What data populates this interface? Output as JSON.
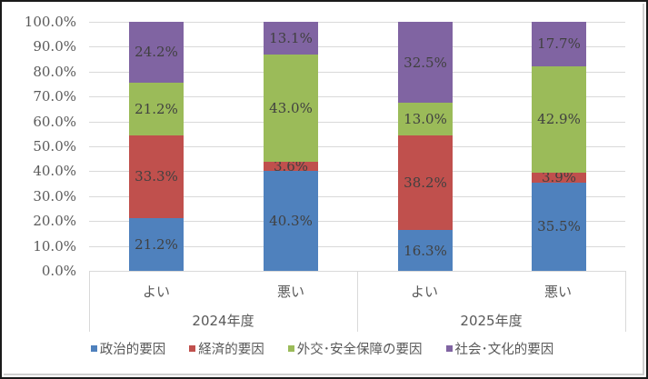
{
  "chart_data": {
    "type": "bar",
    "stacked": true,
    "percent_stacked": true,
    "title": "",
    "xlabel": "",
    "ylabel": "",
    "ylim": [
      0,
      100
    ],
    "y_ticks": [
      "0.0%",
      "10.0%",
      "20.0%",
      "30.0%",
      "40.0%",
      "50.0%",
      "60.0%",
      "70.0%",
      "80.0%",
      "90.0%",
      "100.0%"
    ],
    "grid": true,
    "legend_position": "bottom",
    "categories": [
      "よい",
      "悪い",
      "よい",
      "悪い"
    ],
    "category_groups": [
      {
        "label": "2024年度",
        "categories": [
          "よい",
          "悪い"
        ]
      },
      {
        "label": "2025年度",
        "categories": [
          "よい",
          "悪い"
        ]
      }
    ],
    "series": [
      {
        "name": "政治的要因",
        "color": "#4f81bd",
        "values": [
          21.2,
          40.3,
          16.3,
          35.5
        ],
        "labels": [
          "21.2%",
          "40.3%",
          "16.3%",
          "35.5%"
        ]
      },
      {
        "name": "経済的要因",
        "color": "#c0504d",
        "values": [
          33.3,
          3.6,
          38.2,
          3.9
        ],
        "labels": [
          "33.3%",
          "3.6%",
          "38.2%",
          "3.9%"
        ]
      },
      {
        "name": "外交・安全保障の要因",
        "color": "#9bbb59",
        "values": [
          21.2,
          43.0,
          13.0,
          42.9
        ],
        "labels": [
          "21.2%",
          "43.0%",
          "13.0%",
          "42.9%"
        ]
      },
      {
        "name": "社会・文化的要因",
        "color": "#8064a2",
        "values": [
          24.2,
          13.1,
          32.5,
          17.7
        ],
        "labels": [
          "24.2%",
          "13.1%",
          "32.5%",
          "17.7%"
        ]
      }
    ]
  },
  "axis": {
    "y_ticks": [
      "100.0%",
      "90.0%",
      "80.0%",
      "70.0%",
      "60.0%",
      "50.0%",
      "40.0%",
      "30.0%",
      "20.0%",
      "10.0%",
      "0.0%"
    ],
    "categories": [
      "よい",
      "悪い",
      "よい",
      "悪い"
    ],
    "groups": [
      "2024年度",
      "2025年度"
    ]
  },
  "legend": {
    "items": [
      {
        "label": "政治的要因",
        "color": "#4f81bd"
      },
      {
        "label": "経済的要因",
        "color": "#c0504d"
      },
      {
        "label": "外交･安全保障の要因",
        "color": "#9bbb59"
      },
      {
        "label": "社会･文化的要因",
        "color": "#8064a2"
      }
    ]
  }
}
